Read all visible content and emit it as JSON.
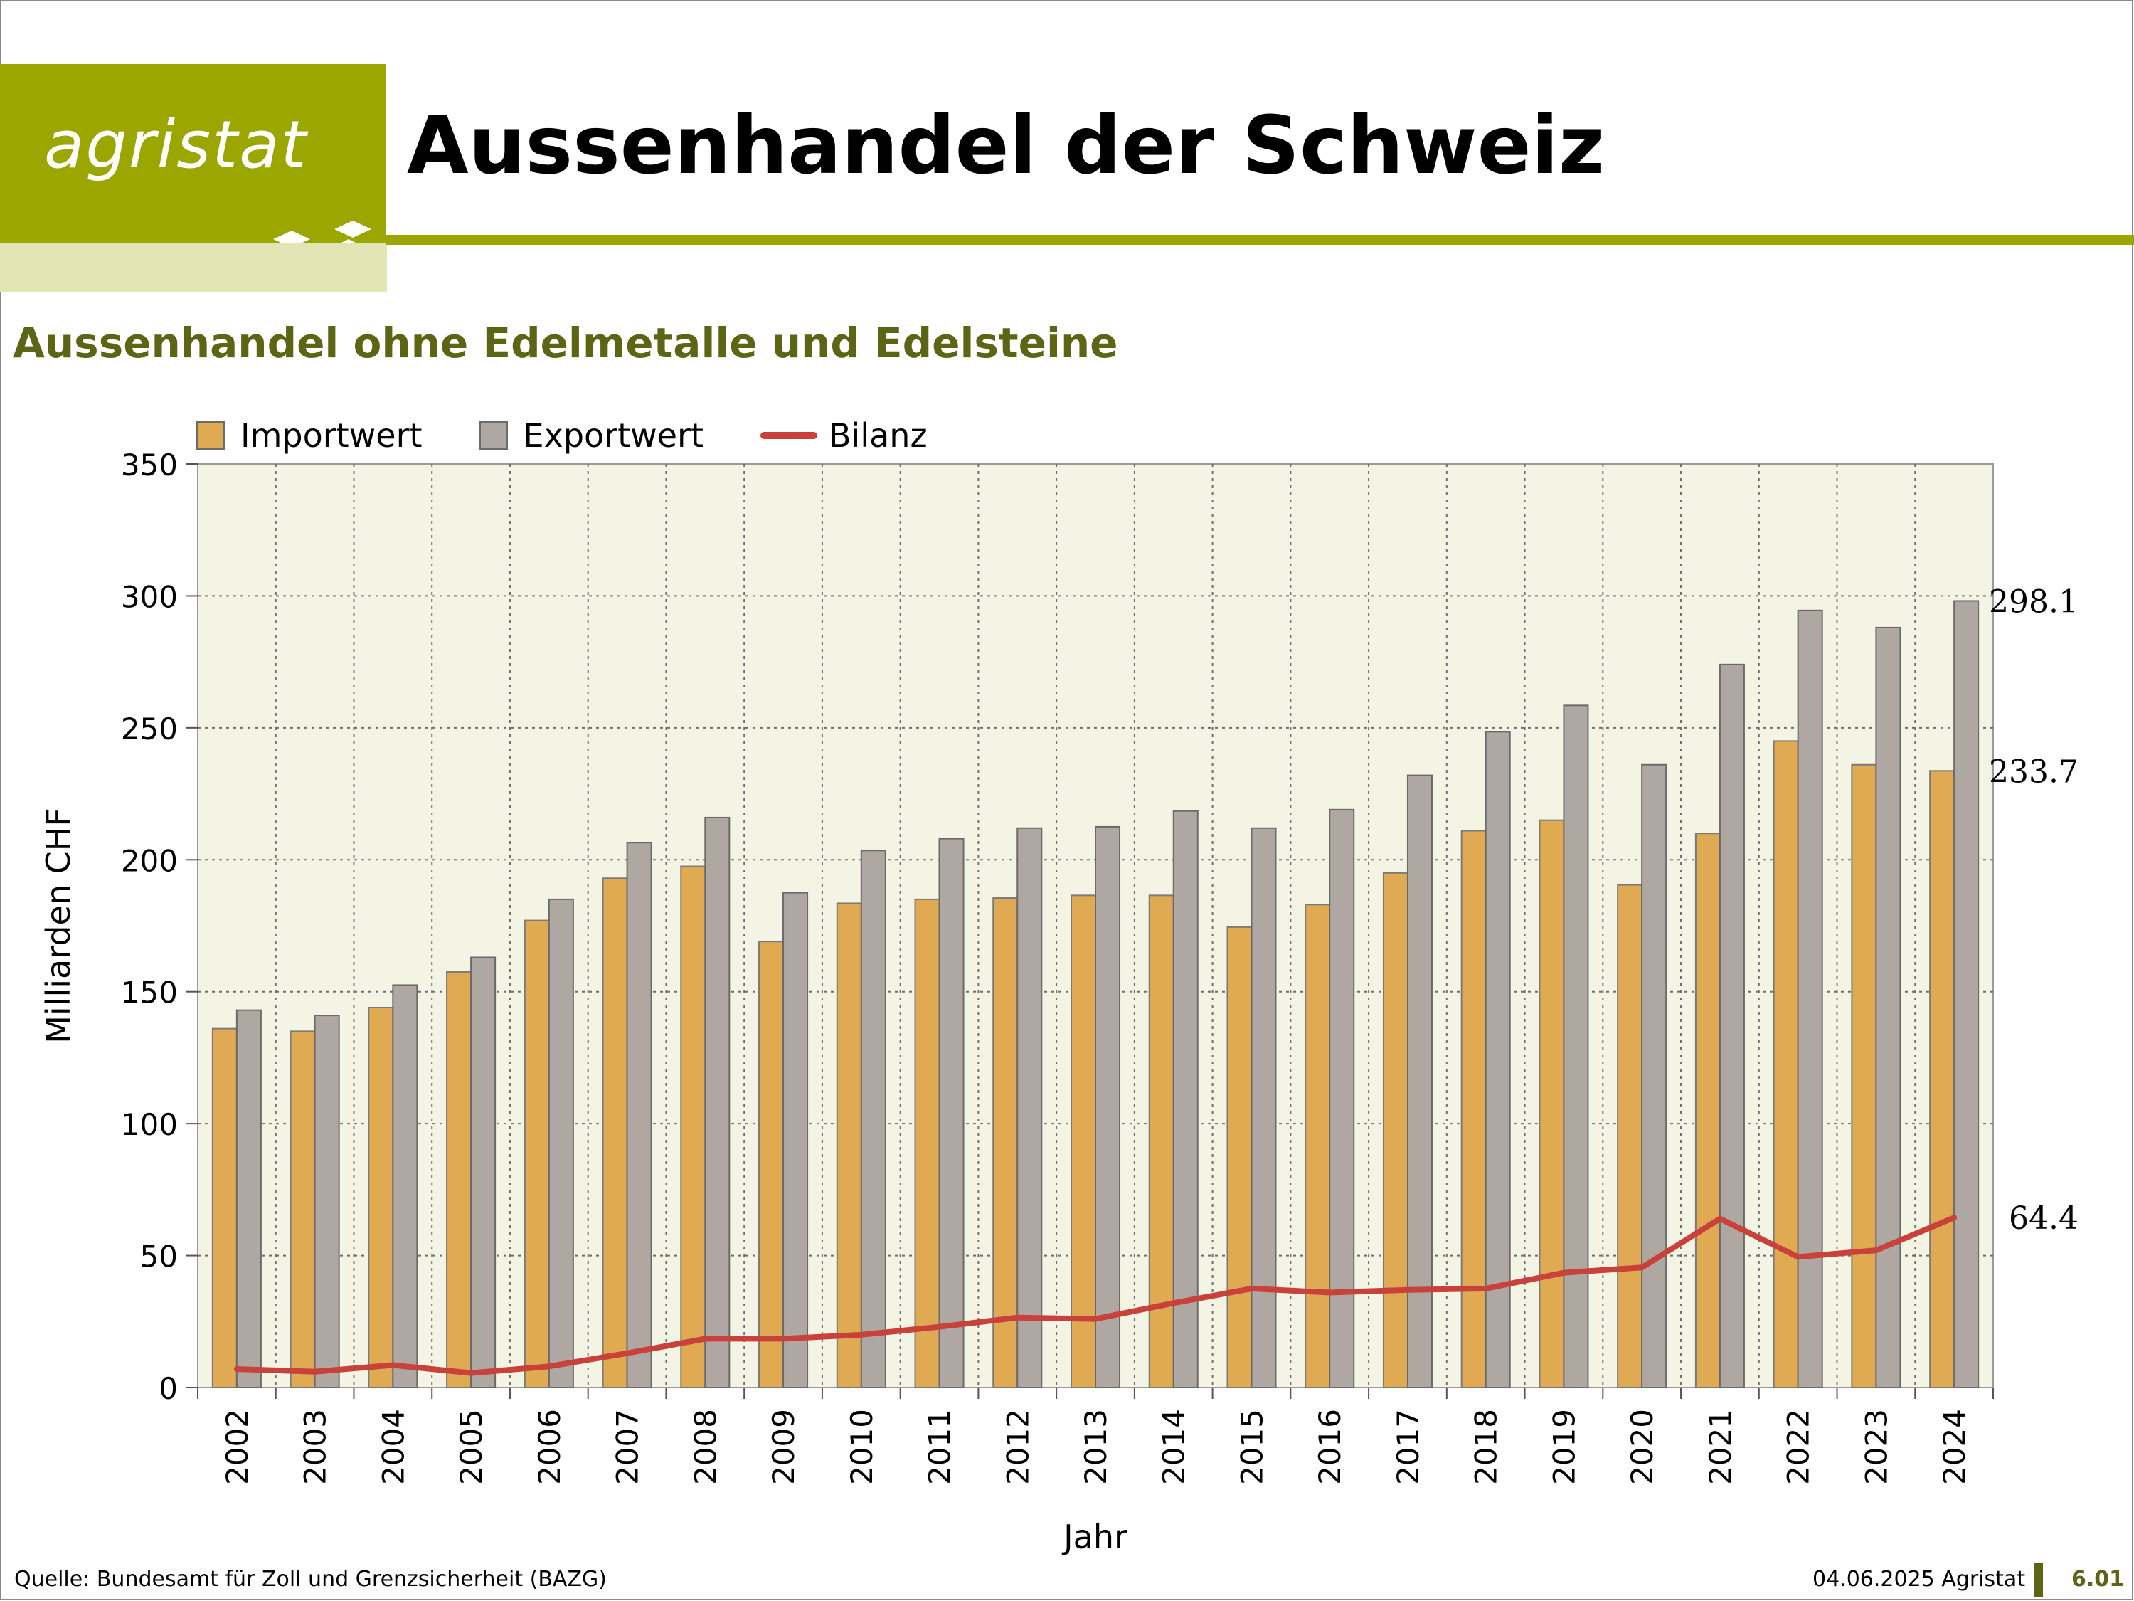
{
  "header": {
    "logo_text": "agristat",
    "title": "Aussenhandel der Schweiz"
  },
  "subtitle": "Aussenhandel ohne Edelmetalle und Edelsteine",
  "footer": {
    "source": "Quelle: Bundesamt für Zoll und Grenzsicherheit (BAZG)",
    "date": "04.06.2025 Agristat",
    "page": "6.01"
  },
  "colors": {
    "brand": "#9ba600",
    "brand_dark": "#5c6514",
    "import": "#e0aa53",
    "export": "#afa8a2",
    "balance": "#c8413b",
    "plot_bg": "#f3f4e3"
  },
  "chart_data": {
    "type": "bar",
    "xlabel": "Jahr",
    "ylabel": "Milliarden CHF",
    "ylim": [
      0,
      350
    ],
    "yticks": [
      0,
      50,
      100,
      150,
      200,
      250,
      300,
      350
    ],
    "grid": true,
    "legend_position": "top-left",
    "categories": [
      "2002",
      "2003",
      "2004",
      "2005",
      "2006",
      "2007",
      "2008",
      "2009",
      "2010",
      "2011",
      "2012",
      "2013",
      "2014",
      "2015",
      "2016",
      "2017",
      "2018",
      "2019",
      "2020",
      "2021",
      "2022",
      "2023",
      "2024"
    ],
    "series": [
      {
        "name": "Importwert",
        "type": "bar",
        "values": [
          136,
          135,
          144,
          157.5,
          177,
          193,
          197.5,
          169,
          183.5,
          185,
          185.5,
          186.5,
          186.5,
          174.5,
          183,
          195,
          211,
          215,
          190.5,
          210,
          245,
          236,
          233.7
        ]
      },
      {
        "name": "Exportwert",
        "type": "bar",
        "values": [
          143,
          141,
          152.5,
          163,
          185,
          206.5,
          216,
          187.5,
          203.5,
          208,
          212,
          212.5,
          218.5,
          212,
          219,
          232,
          248.5,
          258.5,
          236,
          274,
          294.5,
          288,
          298.1
        ]
      },
      {
        "name": "Bilanz",
        "type": "line",
        "values": [
          7,
          6,
          8.5,
          5.5,
          8,
          13,
          18.5,
          18.5,
          20,
          23,
          26.5,
          26,
          32,
          37.5,
          36,
          37,
          37.5,
          43.5,
          45.5,
          64,
          49.5,
          52,
          64.4
        ]
      }
    ],
    "annotations": [
      {
        "series": "Exportwert",
        "category": "2024",
        "text": "298.1"
      },
      {
        "series": "Importwert",
        "category": "2024",
        "text": "233.7"
      },
      {
        "series": "Bilanz",
        "category": "2024",
        "text": "64.4"
      }
    ]
  }
}
